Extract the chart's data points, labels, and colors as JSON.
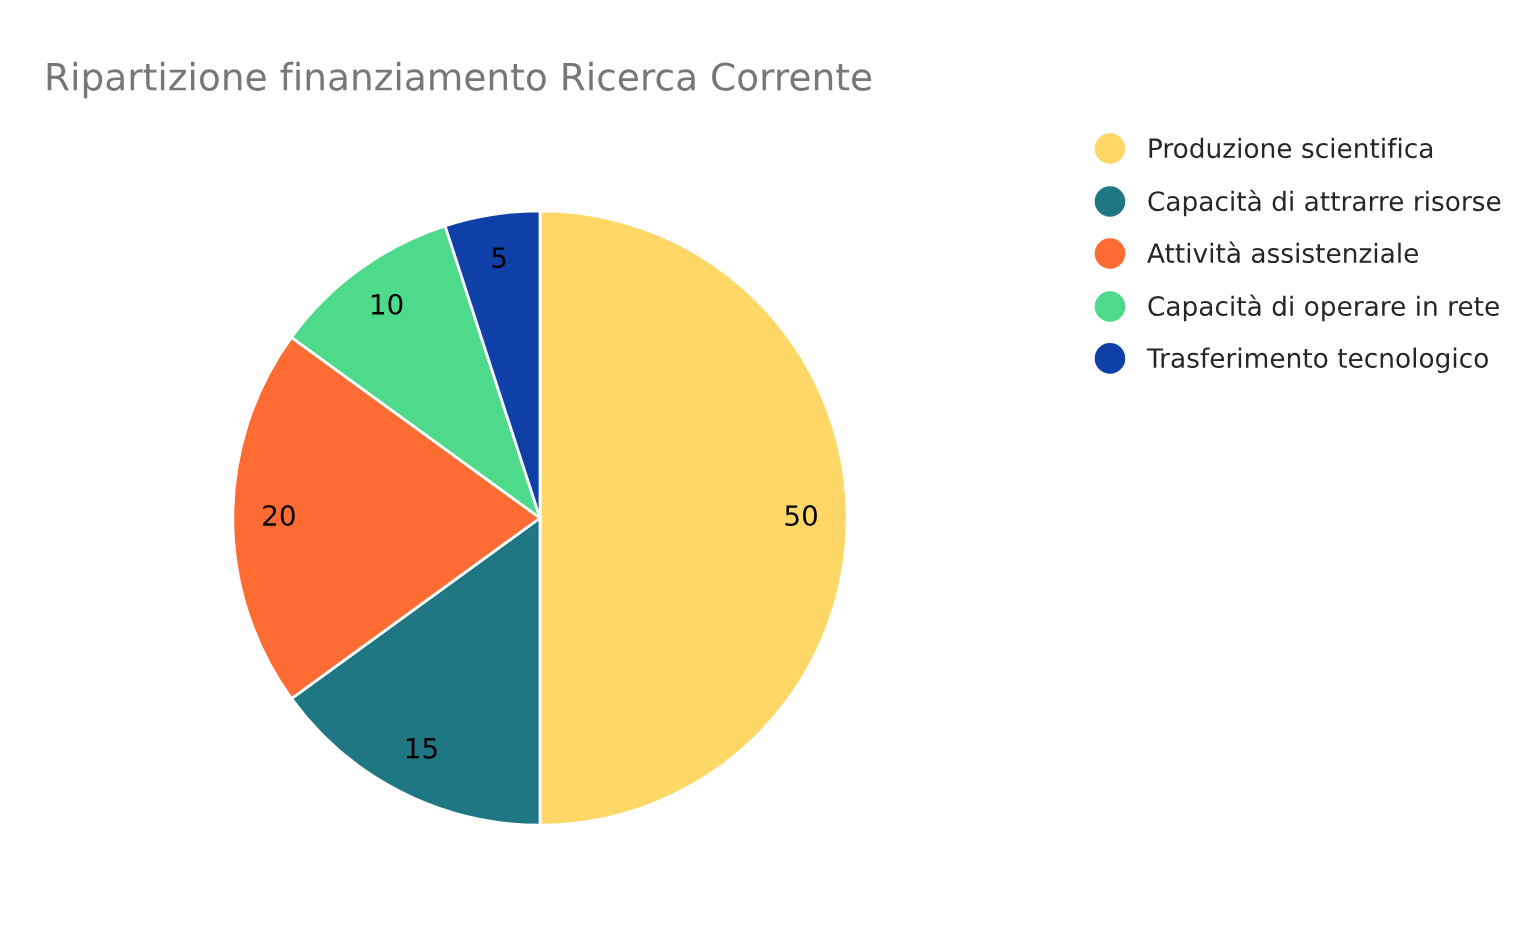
{
  "chart_data": {
    "type": "pie",
    "title": "Ripartizione finanziamento Ricerca Corrente",
    "categories": [
      "Produzione scientifica",
      "Capacità di attrarre risorse",
      "Attività assistenziale",
      "Capacità di operare in rete",
      "Trasferimento tecnologico"
    ],
    "values": [
      50,
      15,
      20,
      10,
      5
    ],
    "colors": [
      "#fed766",
      "#1f7784",
      "#fe6c34",
      "#4ddb8b",
      "#0f40a8"
    ],
    "data_labels": true,
    "legend": "right"
  }
}
